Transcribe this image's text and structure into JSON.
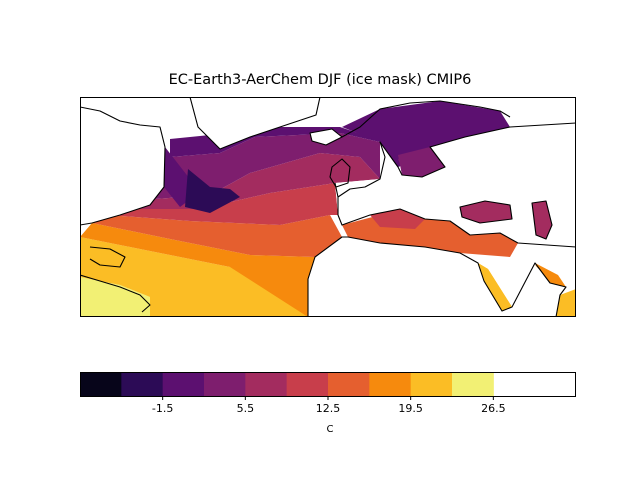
{
  "title": "EC-Earth3-AerChem DJF (ice mask) CMIP6",
  "colorbar": {
    "label": "C",
    "ticks": [
      "-1.5",
      "5.5",
      "12.5",
      "19.5",
      "26.5"
    ],
    "tick_values": [
      -1.5,
      5.5,
      12.5,
      19.5,
      26.5
    ],
    "range": [
      -8.5,
      33.5
    ],
    "bins": [
      {
        "low": -8.5,
        "high": -5.0,
        "color": "#07051a"
      },
      {
        "low": -5.0,
        "high": -1.5,
        "color": "#2c0b56"
      },
      {
        "low": -1.5,
        "high": 2.0,
        "color": "#5c1070"
      },
      {
        "low": 2.0,
        "high": 5.5,
        "color": "#7e1e6e"
      },
      {
        "low": 5.5,
        "high": 9.0,
        "color": "#a32c5f"
      },
      {
        "low": 9.0,
        "high": 12.5,
        "color": "#c83e4b"
      },
      {
        "low": 12.5,
        "high": 16.0,
        "color": "#e55f2f"
      },
      {
        "low": 16.0,
        "high": 19.5,
        "color": "#f68a0d"
      },
      {
        "low": 19.5,
        "high": 23.0,
        "color": "#fbbd25"
      },
      {
        "low": 23.0,
        "high": 26.5,
        "color": "#f2f074"
      }
    ]
  },
  "map": {
    "region": "North Atlantic / Mediterranean",
    "land_color": "#ffffff",
    "coast_color": "#000000"
  }
}
